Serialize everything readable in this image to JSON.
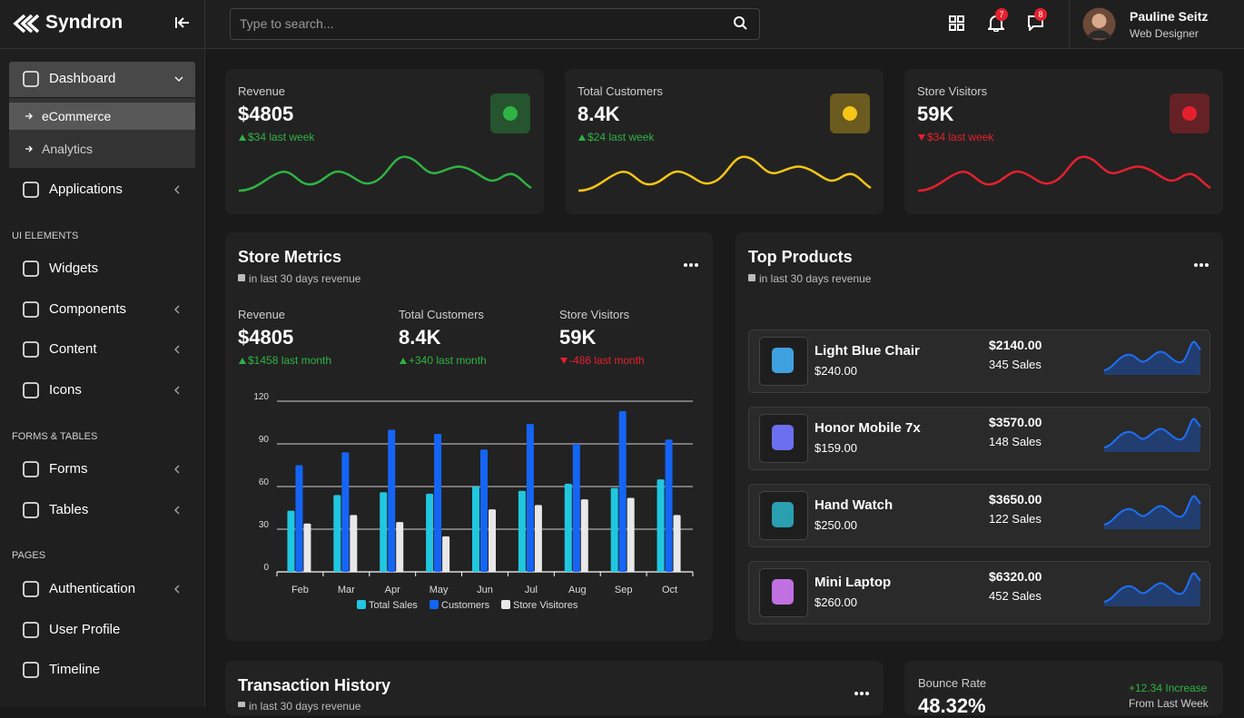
{
  "brand": "Syndron",
  "search_placeholder": "Type to search...",
  "badges": {
    "apps_notifications": 7,
    "messages": 8
  },
  "user": {
    "name": "Pauline Seitz",
    "role": "Web Designer"
  },
  "nav": [
    {
      "label": "Dashboard",
      "children": [
        "eCommerce",
        "Analytics"
      ]
    },
    {
      "label": "Applications"
    },
    {
      "heading": "UI ELEMENTS"
    },
    {
      "label": "Widgets"
    },
    {
      "label": "Components"
    },
    {
      "label": "Content"
    },
    {
      "label": "Icons"
    },
    {
      "heading": "FORMS & TABLES"
    },
    {
      "label": "Forms"
    },
    {
      "label": "Tables"
    },
    {
      "heading": "PAGES"
    },
    {
      "label": "Authentication"
    },
    {
      "label": "User Profile"
    },
    {
      "label": "Timeline"
    }
  ],
  "stats": [
    {
      "label": "Revenue",
      "value": "$4805",
      "change": "$34 last week",
      "trend": "up",
      "color": "#2fb344"
    },
    {
      "label": "Total Customers",
      "value": "8.4K",
      "change": "$24 last week",
      "trend": "up",
      "color": "#f5c518"
    },
    {
      "label": "Store Visitors",
      "value": "59K",
      "change": "$34 last week",
      "trend": "down",
      "color": "#e5202e"
    }
  ],
  "store_metrics": {
    "title": "Store Metrics",
    "subtitle": "in last 30 days revenue",
    "metrics": [
      {
        "label": "Revenue",
        "value": "$4805",
        "change": "$1458 last month",
        "trend": "up"
      },
      {
        "label": "Total Customers",
        "value": "8.4K",
        "change": "+340 last month",
        "trend": "up"
      },
      {
        "label": "Store Visitors",
        "value": "59K",
        "change": "-486 last month",
        "trend": "down"
      }
    ]
  },
  "chart_data": {
    "type": "bar",
    "categories": [
      "Feb",
      "Mar",
      "Apr",
      "May",
      "Jun",
      "Jul",
      "Aug",
      "Sep",
      "Oct"
    ],
    "series": [
      {
        "name": "Total Sales",
        "color": "#1fc7e0",
        "values": [
          43,
          54,
          56,
          55,
          60,
          57,
          62,
          59,
          65
        ]
      },
      {
        "name": "Customers",
        "color": "#1565f5",
        "values": [
          75,
          84,
          100,
          97,
          86,
          104,
          90,
          113,
          93
        ]
      },
      {
        "name": "Store Visitores",
        "color": "#e8e8e8",
        "values": [
          34,
          40,
          35,
          25,
          44,
          47,
          51,
          52,
          40
        ]
      }
    ],
    "ylim": [
      0,
      120
    ],
    "yticks": [
      0,
      30,
      60,
      90,
      120
    ],
    "grid": true,
    "legend": "bottom"
  },
  "top_products": {
    "title": "Top Products",
    "subtitle": "in last 30 days revenue",
    "items": [
      {
        "name": "Light Blue Chair",
        "price": "$240.00",
        "total": "$2140.00",
        "sales": "345 Sales"
      },
      {
        "name": "Honor Mobile 7x",
        "price": "$159.00",
        "total": "$3570.00",
        "sales": "148 Sales"
      },
      {
        "name": "Hand Watch",
        "price": "$250.00",
        "total": "$3650.00",
        "sales": "122 Sales"
      },
      {
        "name": "Mini Laptop",
        "price": "$260.00",
        "total": "$6320.00",
        "sales": "452 Sales"
      }
    ]
  },
  "transaction_history": {
    "title": "Transaction History",
    "subtitle": "in last 30 days revenue"
  },
  "bounce_rate": {
    "label": "Bounce Rate",
    "value": "48.32%",
    "change": "+12.34 Increase",
    "note": "From Last Week"
  }
}
